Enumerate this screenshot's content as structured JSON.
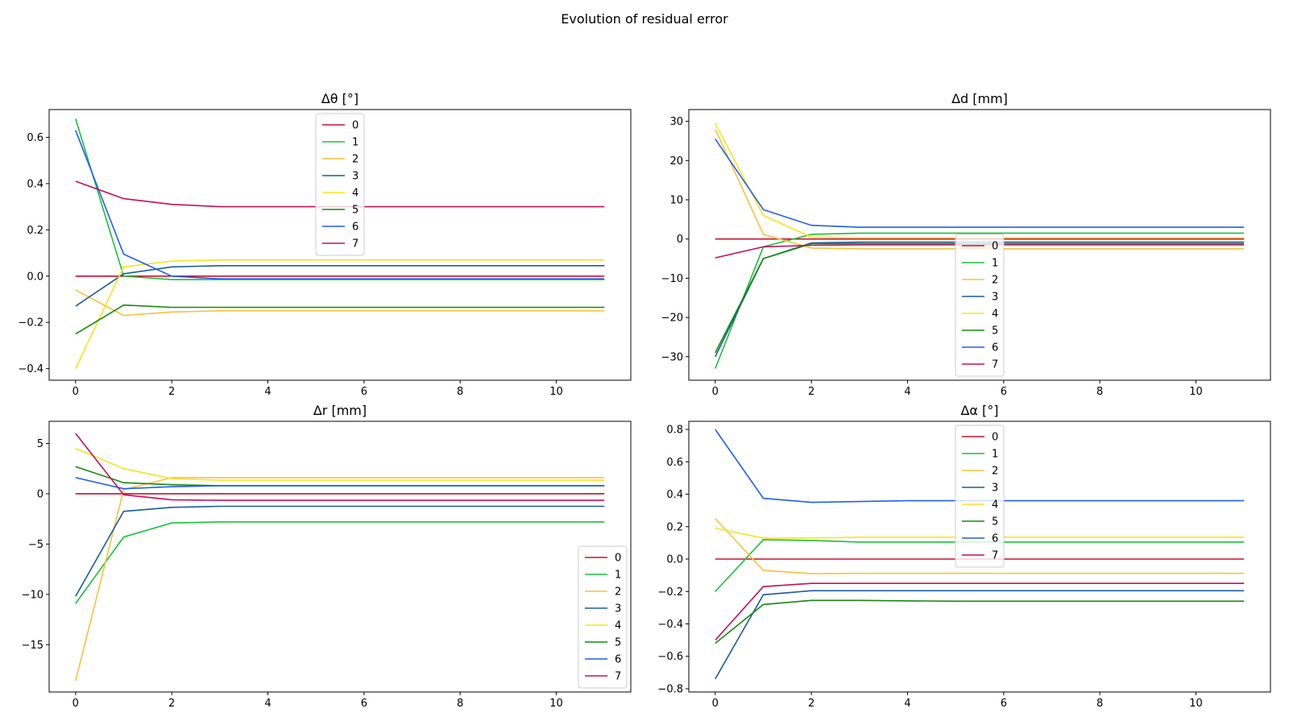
{
  "suptitle": "Evolution of residual error",
  "colors": [
    "#c8102e",
    "#19c03c",
    "#f7c23c",
    "#1a5e9c",
    "#f5e51e",
    "#158a0c",
    "#1f5ff5",
    "#c4105a"
  ],
  "legend_labels": [
    "0",
    "1",
    "2",
    "3",
    "4",
    "5",
    "6",
    "7"
  ],
  "chart_data": [
    {
      "type": "line",
      "title": "Δθ [°]",
      "xlabel": "",
      "ylabel": "",
      "xlim": [
        -0.55,
        11.55
      ],
      "ylim": [
        -0.45,
        0.72
      ],
      "xticks": [
        0,
        2,
        4,
        6,
        8,
        10
      ],
      "yticks": [
        -0.4,
        -0.2,
        0.0,
        0.2,
        0.4,
        0.6
      ],
      "ytick_labels": [
        "−0.4",
        "−0.2",
        "0.0",
        "0.2",
        "0.4",
        "0.6"
      ],
      "legend_position": "upper center",
      "x": [
        0,
        1,
        2,
        3,
        4,
        5,
        6,
        7,
        8,
        9,
        10,
        11
      ],
      "series": [
        {
          "name": "0",
          "values": [
            0,
            0,
            0,
            0,
            0,
            0,
            0,
            0,
            0,
            0,
            0,
            0
          ]
        },
        {
          "name": "1",
          "values": [
            0.68,
            0.0,
            -0.015,
            -0.015,
            -0.015,
            -0.015,
            -0.015,
            -0.015,
            -0.015,
            -0.015,
            -0.015,
            -0.015
          ]
        },
        {
          "name": "2",
          "values": [
            -0.06,
            -0.17,
            -0.155,
            -0.15,
            -0.15,
            -0.15,
            -0.15,
            -0.15,
            -0.15,
            -0.15,
            -0.15,
            -0.15
          ]
        },
        {
          "name": "3",
          "values": [
            -0.13,
            0.01,
            0.04,
            0.045,
            0.045,
            0.045,
            0.045,
            0.045,
            0.045,
            0.045,
            0.045,
            0.045
          ]
        },
        {
          "name": "4",
          "values": [
            -0.4,
            0.04,
            0.065,
            0.07,
            0.07,
            0.07,
            0.07,
            0.07,
            0.07,
            0.07,
            0.07,
            0.07
          ]
        },
        {
          "name": "5",
          "values": [
            -0.25,
            -0.125,
            -0.135,
            -0.135,
            -0.135,
            -0.135,
            -0.135,
            -0.135,
            -0.135,
            -0.135,
            -0.135,
            -0.135
          ]
        },
        {
          "name": "6",
          "values": [
            0.63,
            0.095,
            0.0,
            -0.012,
            -0.012,
            -0.012,
            -0.012,
            -0.012,
            -0.012,
            -0.012,
            -0.012,
            -0.012
          ]
        },
        {
          "name": "7",
          "values": [
            0.41,
            0.335,
            0.31,
            0.3,
            0.3,
            0.3,
            0.3,
            0.3,
            0.3,
            0.3,
            0.3,
            0.3
          ]
        }
      ]
    },
    {
      "type": "line",
      "title": "Δd [mm]",
      "xlabel": "",
      "ylabel": "",
      "xlim": [
        -0.55,
        11.55
      ],
      "ylim": [
        -36,
        33
      ],
      "xticks": [
        0,
        2,
        4,
        6,
        8,
        10
      ],
      "yticks": [
        -30,
        -20,
        -10,
        0,
        10,
        20,
        30
      ],
      "ytick_labels": [
        "−30",
        "−20",
        "−10",
        "0",
        "10",
        "20",
        "30"
      ],
      "legend_position": "lower center",
      "x": [
        0,
        1,
        2,
        3,
        4,
        5,
        6,
        7,
        8,
        9,
        10,
        11
      ],
      "series": [
        {
          "name": "0",
          "values": [
            0,
            0,
            0,
            0,
            0,
            0,
            0,
            0,
            0,
            0,
            0,
            0
          ]
        },
        {
          "name": "1",
          "values": [
            -33,
            -2,
            1.2,
            1.5,
            1.5,
            1.5,
            1.5,
            1.5,
            1.5,
            1.5,
            1.5,
            1.5
          ]
        },
        {
          "name": "2",
          "values": [
            28,
            1.2,
            -2.3,
            -2.5,
            -2.5,
            -2.5,
            -2.5,
            -2.5,
            -2.5,
            -2.5,
            -2.5,
            -2.5
          ]
        },
        {
          "name": "3",
          "values": [
            -30,
            -5,
            -1,
            -0.8,
            -0.8,
            -0.8,
            -0.8,
            -0.8,
            -0.8,
            -0.8,
            -0.8,
            -0.8
          ]
        },
        {
          "name": "4",
          "values": [
            29.5,
            6,
            0.5,
            0.3,
            0.3,
            0.3,
            0.3,
            0.3,
            0.3,
            0.3,
            0.3,
            0.3
          ]
        },
        {
          "name": "5",
          "values": [
            -29,
            -5,
            -1.2,
            -1.2,
            -1.2,
            -1.2,
            -1.2,
            -1.2,
            -1.2,
            -1.2,
            -1.2,
            -1.2
          ]
        },
        {
          "name": "6",
          "values": [
            25.5,
            7.5,
            3.5,
            3,
            3,
            3,
            3,
            3,
            3,
            3,
            3,
            3
          ]
        },
        {
          "name": "7",
          "values": [
            -4.8,
            -2,
            -1.6,
            -1.5,
            -1.5,
            -1.5,
            -1.5,
            -1.5,
            -1.5,
            -1.5,
            -1.5,
            -1.5
          ]
        }
      ]
    },
    {
      "type": "line",
      "title": "Δr [mm]",
      "xlabel": "",
      "ylabel": "",
      "xlim": [
        -0.55,
        11.55
      ],
      "ylim": [
        -19.7,
        7.2
      ],
      "xticks": [
        0,
        2,
        4,
        6,
        8,
        10
      ],
      "yticks": [
        -15,
        -10,
        -5,
        0,
        5
      ],
      "ytick_labels": [
        "−15",
        "−10",
        "−5",
        "0",
        "5"
      ],
      "legend_position": "lower right",
      "x": [
        0,
        1,
        2,
        3,
        4,
        5,
        6,
        7,
        8,
        9,
        10,
        11
      ],
      "series": [
        {
          "name": "0",
          "values": [
            0,
            0,
            0,
            0,
            0,
            0,
            0,
            0,
            0,
            0,
            0,
            0
          ]
        },
        {
          "name": "1",
          "values": [
            -10.9,
            -4.3,
            -2.9,
            -2.8,
            -2.8,
            -2.8,
            -2.8,
            -2.8,
            -2.8,
            -2.8,
            -2.8,
            -2.8
          ]
        },
        {
          "name": "2",
          "values": [
            -18.6,
            0.4,
            1.6,
            1.6,
            1.6,
            1.6,
            1.6,
            1.6,
            1.6,
            1.6,
            1.6,
            1.6
          ]
        },
        {
          "name": "3",
          "values": [
            -10.2,
            -1.75,
            -1.35,
            -1.25,
            -1.25,
            -1.25,
            -1.25,
            -1.25,
            -1.25,
            -1.25,
            -1.25,
            -1.25
          ]
        },
        {
          "name": "4",
          "values": [
            4.5,
            2.5,
            1.5,
            1.35,
            1.35,
            1.35,
            1.35,
            1.35,
            1.35,
            1.35,
            1.35,
            1.35
          ]
        },
        {
          "name": "5",
          "values": [
            2.7,
            1.1,
            0.9,
            0.8,
            0.8,
            0.8,
            0.8,
            0.8,
            0.8,
            0.8,
            0.8,
            0.8
          ]
        },
        {
          "name": "6",
          "values": [
            1.6,
            0.5,
            0.7,
            0.8,
            0.8,
            0.8,
            0.8,
            0.8,
            0.8,
            0.8,
            0.8,
            0.8
          ]
        },
        {
          "name": "7",
          "values": [
            6.0,
            -0.1,
            -0.6,
            -0.65,
            -0.65,
            -0.65,
            -0.65,
            -0.65,
            -0.65,
            -0.65,
            -0.65,
            -0.65
          ]
        }
      ]
    },
    {
      "type": "line",
      "title": "Δα [°]",
      "xlabel": "",
      "ylabel": "",
      "xlim": [
        -0.55,
        11.55
      ],
      "ylim": [
        -0.82,
        0.85
      ],
      "xticks": [
        0,
        2,
        4,
        6,
        8,
        10
      ],
      "yticks": [
        -0.8,
        -0.6,
        -0.4,
        -0.2,
        0.0,
        0.2,
        0.4,
        0.6,
        0.8
      ],
      "ytick_labels": [
        "−0.8",
        "−0.6",
        "−0.4",
        "−0.2",
        "0.0",
        "0.2",
        "0.4",
        "0.6",
        "0.8"
      ],
      "legend_position": "upper center",
      "x": [
        0,
        1,
        2,
        3,
        4,
        5,
        6,
        7,
        8,
        9,
        10,
        11
      ],
      "series": [
        {
          "name": "0",
          "values": [
            0,
            0,
            0,
            0,
            0,
            0,
            0,
            0,
            0,
            0,
            0,
            0
          ]
        },
        {
          "name": "1",
          "values": [
            -0.2,
            0.12,
            0.115,
            0.105,
            0.105,
            0.105,
            0.105,
            0.105,
            0.105,
            0.105,
            0.105,
            0.105
          ]
        },
        {
          "name": "2",
          "values": [
            0.25,
            -0.07,
            -0.09,
            -0.088,
            -0.088,
            -0.088,
            -0.088,
            -0.088,
            -0.088,
            -0.088,
            -0.088,
            -0.088
          ]
        },
        {
          "name": "3",
          "values": [
            -0.74,
            -0.22,
            -0.195,
            -0.195,
            -0.195,
            -0.195,
            -0.195,
            -0.195,
            -0.195,
            -0.195,
            -0.195,
            -0.195
          ]
        },
        {
          "name": "4",
          "values": [
            0.19,
            0.13,
            0.13,
            0.135,
            0.135,
            0.135,
            0.135,
            0.135,
            0.135,
            0.135,
            0.135,
            0.135
          ]
        },
        {
          "name": "5",
          "values": [
            -0.52,
            -0.28,
            -0.255,
            -0.255,
            -0.258,
            -0.26,
            -0.26,
            -0.26,
            -0.26,
            -0.26,
            -0.26,
            -0.26
          ]
        },
        {
          "name": "6",
          "values": [
            0.8,
            0.375,
            0.35,
            0.355,
            0.36,
            0.36,
            0.36,
            0.36,
            0.36,
            0.36,
            0.36,
            0.36
          ]
        },
        {
          "name": "7",
          "values": [
            -0.5,
            -0.17,
            -0.15,
            -0.15,
            -0.15,
            -0.15,
            -0.15,
            -0.15,
            -0.15,
            -0.15,
            -0.15,
            -0.15
          ]
        }
      ]
    }
  ]
}
